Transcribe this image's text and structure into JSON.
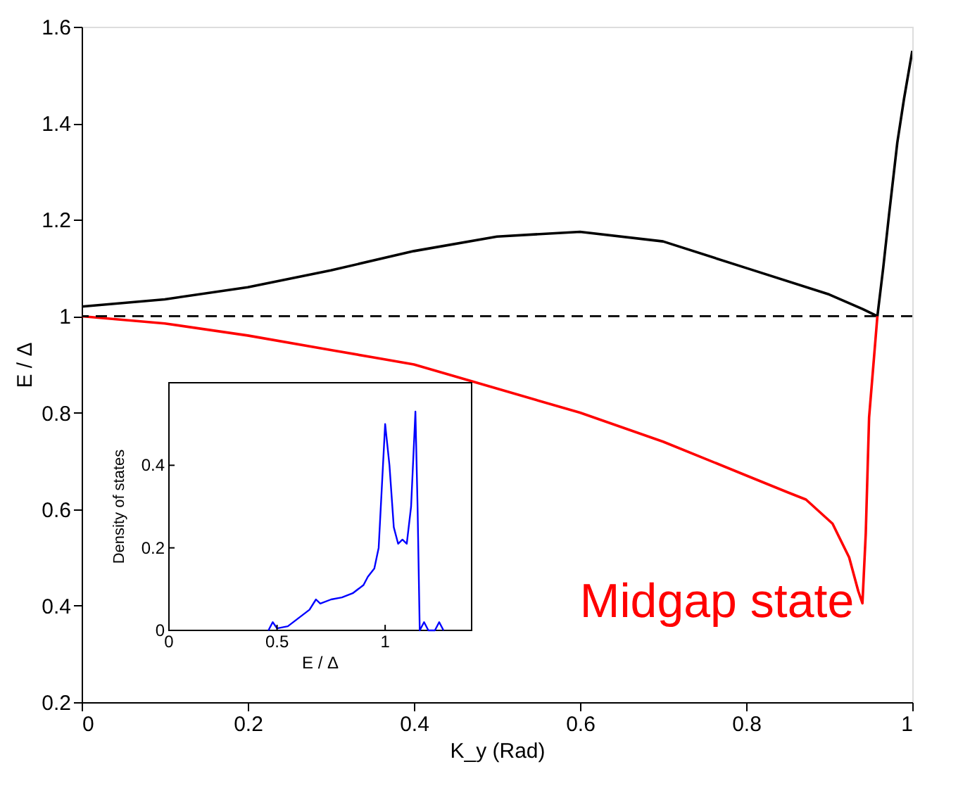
{
  "chart_data": [
    {
      "type": "line",
      "xlabel": "K_y (Rad)",
      "ylabel": "E / Δ",
      "xlim": [
        0,
        1
      ],
      "ylim": [
        0.2,
        1.6
      ],
      "xticks": [
        0,
        0.2,
        0.4,
        0.6,
        0.8,
        1
      ],
      "yticks": [
        0.2,
        0.4,
        0.6,
        0.8,
        1,
        1.2,
        1.4,
        1.6
      ],
      "grid": false,
      "line_style": "solid",
      "series": [
        {
          "color": "#000000",
          "x": [
            0,
            0.1,
            0.2,
            0.3,
            0.4,
            0.5,
            0.6,
            0.7,
            0.8,
            0.9,
            0.94,
            0.958,
            0.965,
            0.972,
            0.982,
            0.99,
            1.0
          ],
          "values": [
            1.02,
            1.035,
            1.06,
            1.095,
            1.135,
            1.165,
            1.175,
            1.155,
            1.1,
            1.045,
            1.015,
            1.0,
            1.1,
            1.21,
            1.36,
            1.45,
            1.55
          ]
        },
        {
          "color": "#ff0000",
          "x": [
            0,
            0.1,
            0.2,
            0.3,
            0.4,
            0.5,
            0.6,
            0.7,
            0.8,
            0.85,
            0.872,
            0.904,
            0.924,
            0.935,
            0.94,
            0.944,
            0.948,
            0.958
          ],
          "values": [
            1.0,
            0.985,
            0.96,
            0.93,
            0.9,
            0.85,
            0.8,
            0.74,
            0.67,
            0.635,
            0.62,
            0.57,
            0.5,
            0.43,
            0.405,
            0.55,
            0.79,
            1.0
          ]
        }
      ],
      "ref_lines": [
        {
          "axis": "y",
          "value": 1,
          "color": "#000000",
          "line_style": "dashed"
        }
      ],
      "annotations": [
        {
          "text": "Midgap state",
          "x": 0.94,
          "y": 0.405
        }
      ]
    },
    {
      "type": "line",
      "xlabel": "E / Δ",
      "ylabel": "Density of states",
      "xlim": [
        0,
        1.4
      ],
      "ylim": [
        0,
        0.6
      ],
      "xticks": [
        0,
        0.5,
        1
      ],
      "yticks": [
        0,
        0.2,
        0.4
      ],
      "grid": false,
      "line_style": "solid",
      "series": [
        {
          "color": "#0000ff",
          "x": [
            0.46,
            0.48,
            0.5,
            0.55,
            0.6,
            0.65,
            0.68,
            0.7,
            0.75,
            0.8,
            0.85,
            0.9,
            0.92,
            0.95,
            0.97,
            0.99,
            1.0,
            1.02,
            1.04,
            1.06,
            1.08,
            1.1,
            1.12,
            1.14,
            1.15,
            1.16,
            1.18,
            1.2,
            1.23,
            1.25,
            1.27
          ],
          "values": [
            0,
            0.02,
            0.005,
            0.01,
            0.03,
            0.05,
            0.075,
            0.065,
            0.075,
            0.08,
            0.09,
            0.11,
            0.13,
            0.15,
            0.2,
            0.4,
            0.5,
            0.4,
            0.25,
            0.21,
            0.22,
            0.21,
            0.3,
            0.53,
            0.3,
            0,
            0.02,
            0,
            0,
            0.02,
            0
          ]
        }
      ]
    }
  ]
}
